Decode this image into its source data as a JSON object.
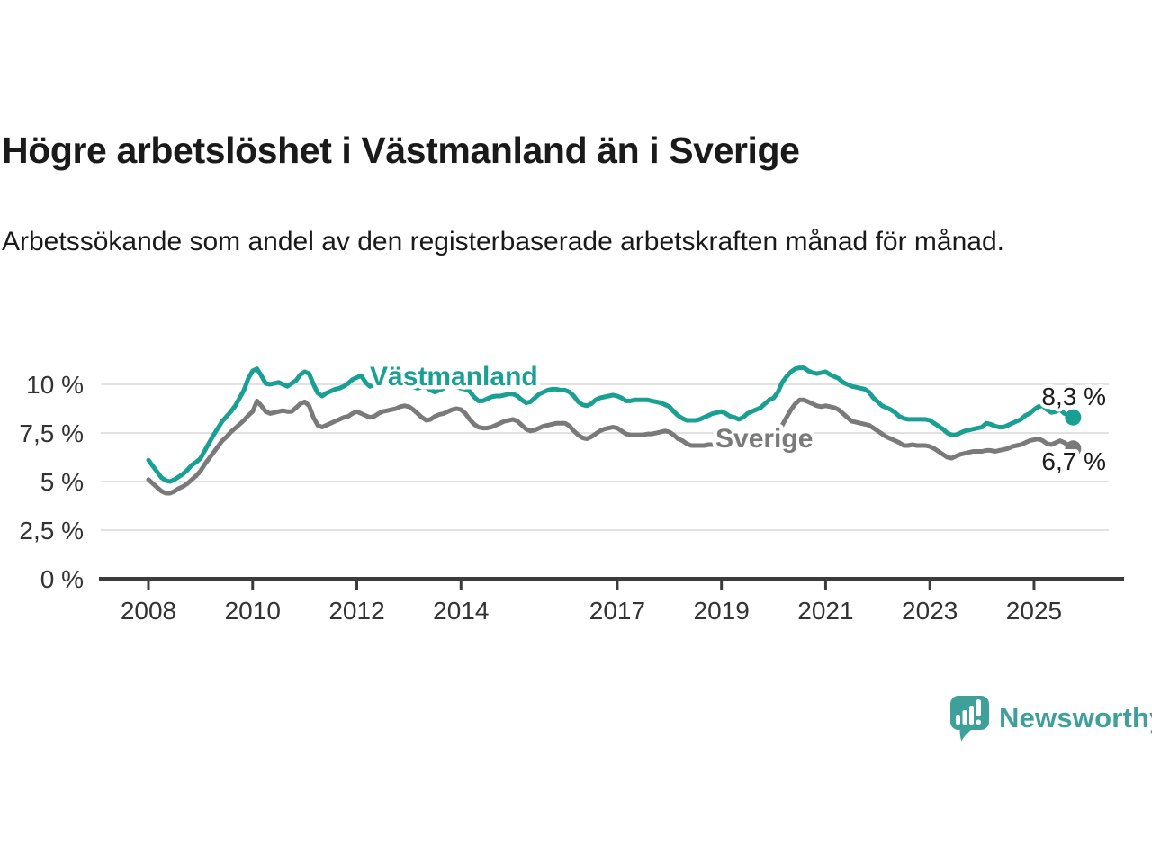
{
  "header": {
    "title": "Högre arbetslöshet i Västmanland än i Sverige",
    "subtitle": "Arbetssökande som andel av den registerbaserade arbetskraften månad för månad."
  },
  "chart_data": {
    "type": "line",
    "frequency": "monthly",
    "x_start": "2008-01",
    "x_end": "2025-10",
    "unit": "%",
    "ylim": [
      0,
      11.3
    ],
    "grid": "horizontal",
    "colors": {
      "vastmanland": "#1aa093",
      "sverige": "#7a7a7a",
      "gridline": "#e2e2e2",
      "axis": "#3c3c3c",
      "value_label": "#1d1d1d"
    },
    "y_ticks": [
      {
        "value": 0,
        "label": "0 %"
      },
      {
        "value": 2.5,
        "label": "2,5 %"
      },
      {
        "value": 5,
        "label": "5 %"
      },
      {
        "value": 7.5,
        "label": "7,5 %"
      },
      {
        "value": 10,
        "label": "10 %"
      }
    ],
    "x_ticks": [
      {
        "year": 2008,
        "label": "2008"
      },
      {
        "year": 2010,
        "label": "2010"
      },
      {
        "year": 2012,
        "label": "2012"
      },
      {
        "year": 2014,
        "label": "2014"
      },
      {
        "year": 2017,
        "label": "2017"
      },
      {
        "year": 2019,
        "label": "2019"
      },
      {
        "year": 2021,
        "label": "2021"
      },
      {
        "year": 2023,
        "label": "2023"
      },
      {
        "year": 2025,
        "label": "2025"
      }
    ],
    "series": [
      {
        "name": "Sverige",
        "color": "#7a7a7a",
        "end_label": "6,7 %",
        "last_value": 6.7,
        "values": [
          5.1,
          4.9,
          4.7,
          4.5,
          4.4,
          4.4,
          4.5,
          4.65,
          4.75,
          4.9,
          5.1,
          5.3,
          5.55,
          5.9,
          6.2,
          6.5,
          6.8,
          7.1,
          7.3,
          7.55,
          7.75,
          7.95,
          8.15,
          8.4,
          8.6,
          9.15,
          8.9,
          8.6,
          8.5,
          8.55,
          8.6,
          8.65,
          8.6,
          8.6,
          8.8,
          9.0,
          9.1,
          8.9,
          8.3,
          7.9,
          7.8,
          7.9,
          8.0,
          8.1,
          8.2,
          8.3,
          8.35,
          8.5,
          8.6,
          8.5,
          8.4,
          8.3,
          8.35,
          8.5,
          8.6,
          8.65,
          8.7,
          8.75,
          8.85,
          8.9,
          8.85,
          8.7,
          8.5,
          8.3,
          8.15,
          8.2,
          8.35,
          8.45,
          8.5,
          8.6,
          8.7,
          8.75,
          8.7,
          8.5,
          8.2,
          7.95,
          7.8,
          7.75,
          7.75,
          7.8,
          7.9,
          8.0,
          8.1,
          8.15,
          8.2,
          8.1,
          7.9,
          7.7,
          7.6,
          7.65,
          7.75,
          7.85,
          7.9,
          7.95,
          8.0,
          8.0,
          8.0,
          7.85,
          7.6,
          7.4,
          7.25,
          7.2,
          7.3,
          7.45,
          7.6,
          7.7,
          7.75,
          7.8,
          7.75,
          7.6,
          7.45,
          7.4,
          7.4,
          7.4,
          7.4,
          7.45,
          7.45,
          7.5,
          7.55,
          7.6,
          7.55,
          7.4,
          7.2,
          7.1,
          6.95,
          6.85,
          6.85,
          6.85,
          6.85,
          6.9,
          6.9,
          6.95,
          6.95,
          6.9,
          6.85,
          6.85,
          6.9,
          6.95,
          7.0,
          7.0,
          7.0,
          7.0,
          7.05,
          7.1,
          7.2,
          7.5,
          7.9,
          8.3,
          8.7,
          9.0,
          9.2,
          9.2,
          9.1,
          9.0,
          8.9,
          8.85,
          8.9,
          8.85,
          8.8,
          8.7,
          8.5,
          8.3,
          8.1,
          8.05,
          8.0,
          7.95,
          7.9,
          7.75,
          7.6,
          7.45,
          7.3,
          7.2,
          7.1,
          7.0,
          6.85,
          6.85,
          6.9,
          6.85,
          6.85,
          6.85,
          6.8,
          6.7,
          6.55,
          6.4,
          6.25,
          6.2,
          6.3,
          6.4,
          6.45,
          6.5,
          6.55,
          6.55,
          6.55,
          6.6,
          6.6,
          6.55,
          6.6,
          6.65,
          6.7,
          6.8,
          6.85,
          6.9,
          7.0,
          7.1,
          7.15,
          7.2,
          7.1,
          6.95,
          6.9,
          7.0,
          7.1,
          7.0,
          6.85,
          6.7
        ]
      },
      {
        "name": "Västmanland",
        "color": "#1aa093",
        "end_label": "8,3 %",
        "last_value": 8.3,
        "values": [
          6.1,
          5.8,
          5.5,
          5.2,
          5.05,
          5.0,
          5.1,
          5.25,
          5.4,
          5.6,
          5.85,
          6.0,
          6.2,
          6.6,
          7.0,
          7.4,
          7.75,
          8.1,
          8.35,
          8.6,
          8.9,
          9.3,
          9.7,
          10.3,
          10.7,
          10.8,
          10.45,
          10.05,
          10.0,
          10.05,
          10.1,
          10.0,
          9.9,
          10.05,
          10.2,
          10.5,
          10.65,
          10.55,
          10.0,
          9.55,
          9.4,
          9.55,
          9.65,
          9.75,
          9.8,
          9.9,
          10.05,
          10.25,
          10.35,
          10.45,
          10.1,
          9.9,
          9.95,
          10.1,
          10.2,
          10.1,
          9.9,
          9.9,
          9.95,
          10.0,
          9.9,
          9.85,
          9.8,
          9.85,
          9.85,
          9.7,
          9.6,
          9.7,
          9.8,
          9.95,
          9.9,
          9.85,
          9.8,
          9.75,
          9.65,
          9.35,
          9.15,
          9.15,
          9.25,
          9.35,
          9.4,
          9.4,
          9.45,
          9.5,
          9.5,
          9.4,
          9.2,
          9.05,
          9.1,
          9.3,
          9.5,
          9.6,
          9.7,
          9.75,
          9.75,
          9.7,
          9.7,
          9.6,
          9.4,
          9.1,
          8.95,
          8.9,
          9.0,
          9.2,
          9.3,
          9.35,
          9.4,
          9.45,
          9.4,
          9.3,
          9.15,
          9.15,
          9.2,
          9.2,
          9.2,
          9.2,
          9.15,
          9.1,
          9.05,
          8.95,
          8.85,
          8.6,
          8.4,
          8.25,
          8.15,
          8.15,
          8.15,
          8.2,
          8.3,
          8.4,
          8.5,
          8.55,
          8.6,
          8.5,
          8.35,
          8.3,
          8.2,
          8.3,
          8.5,
          8.6,
          8.7,
          8.8,
          9.0,
          9.2,
          9.3,
          9.6,
          10.1,
          10.4,
          10.65,
          10.8,
          10.85,
          10.85,
          10.7,
          10.6,
          10.55,
          10.6,
          10.65,
          10.5,
          10.4,
          10.3,
          10.1,
          10.0,
          9.9,
          9.85,
          9.8,
          9.75,
          9.6,
          9.3,
          9.1,
          8.9,
          8.8,
          8.7,
          8.55,
          8.35,
          8.25,
          8.2,
          8.2,
          8.2,
          8.2,
          8.2,
          8.15,
          8.0,
          7.85,
          7.7,
          7.5,
          7.4,
          7.4,
          7.5,
          7.6,
          7.65,
          7.7,
          7.75,
          7.8,
          8.0,
          7.95,
          7.85,
          7.8,
          7.8,
          7.9,
          8.0,
          8.1,
          8.2,
          8.4,
          8.5,
          8.7,
          8.85,
          8.9,
          8.7,
          8.55,
          8.6,
          8.7,
          8.5,
          8.4,
          8.3
        ]
      }
    ]
  },
  "footer": {
    "brand": "Newsworthy",
    "brand_color": "#3fa09a"
  }
}
